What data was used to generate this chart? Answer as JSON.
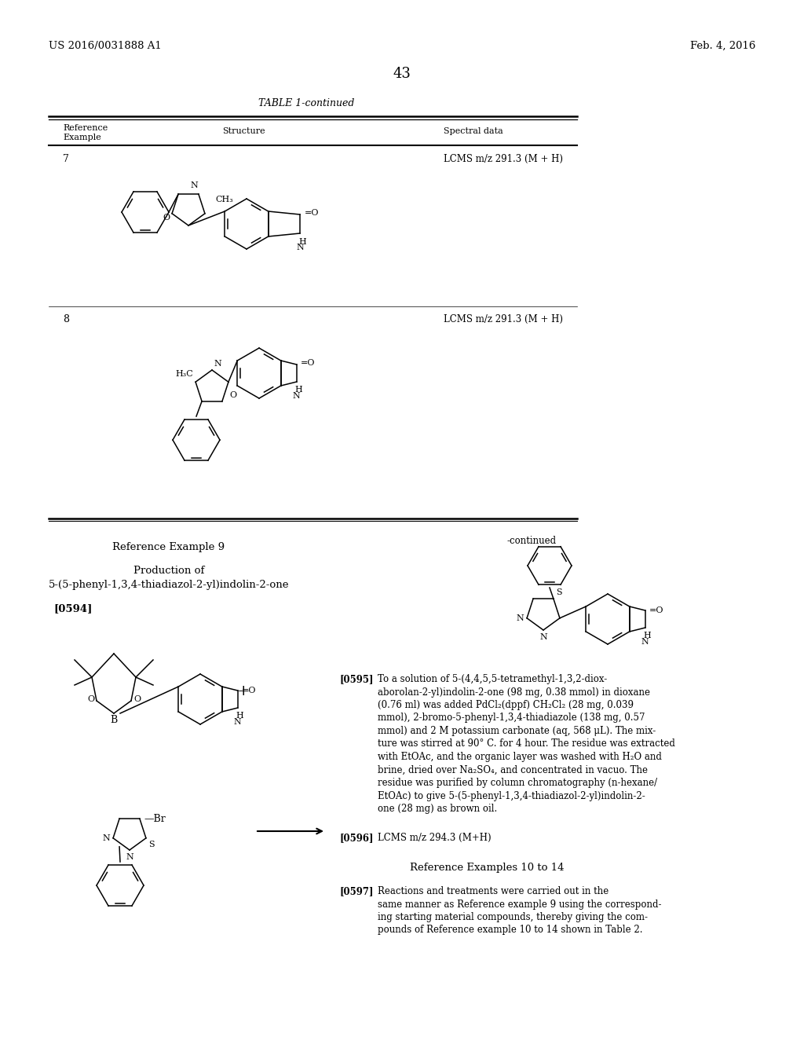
{
  "page_number": "43",
  "header_left": "US 2016/0031888 A1",
  "header_right": "Feb. 4, 2016",
  "table_title": "TABLE 1-continued",
  "row7_ref": "7",
  "row7_spectral": "LCMS m/z 291.3 (M + H)",
  "row8_ref": "8",
  "row8_spectral": "LCMS m/z 291.3 (M + H)",
  "ref_example_title": "Reference Example 9",
  "production_title": "Production of\n5-(5-phenyl-1,3,4-thiadiazol-2-yl)indolin-2-one",
  "paragraph_num": "[0594]",
  "continued_label": "-continued",
  "paragraph_0595_label": "[0595]",
  "paragraph_0595_text": "To a solution of 5-(4,4,5,5-tetramethyl-1,3,2-dioxaborolan-2-yl)indolin-2-one (98 mg, 0.38 mmol) in dioxane (0.76 ml) was added PdCl₂(dppf) CH₂Cl₂ (28 mg, 0.039 mmol), 2-bromo-5-phenyl-1,3,4-thiadiazole (138 mg, 0.57 mmol) and 2 M potassium carbonate (aq, 568 μL). The mixture was stirred at 90° C. for 4 hour. The residue was extracted with EtOAc, and the organic layer was washed with H₂O and brine, dried over Na₂SO₄, and concentrated in vacuo. The residue was purified by column chromatography (n-hexane/EtOAc) to give 5-(5-phenyl-1,3,4-thiadiazol-2-yl)indolin-2-one (28 mg) as brown oil.",
  "paragraph_0596": "[0596]   LCMS m/z 294.3 (M+H)",
  "ref_examples_1014": "Reference Examples 10 to 14",
  "paragraph_0597_label": "[0597]",
  "paragraph_0597_text": "Reactions and treatments were carried out in the same manner as Reference example 9 using the corresponding starting material compounds, thereby giving the compounds of Reference example 10 to 14 shown in Table 2.",
  "bg_color": "#ffffff",
  "text_color": "#000000"
}
